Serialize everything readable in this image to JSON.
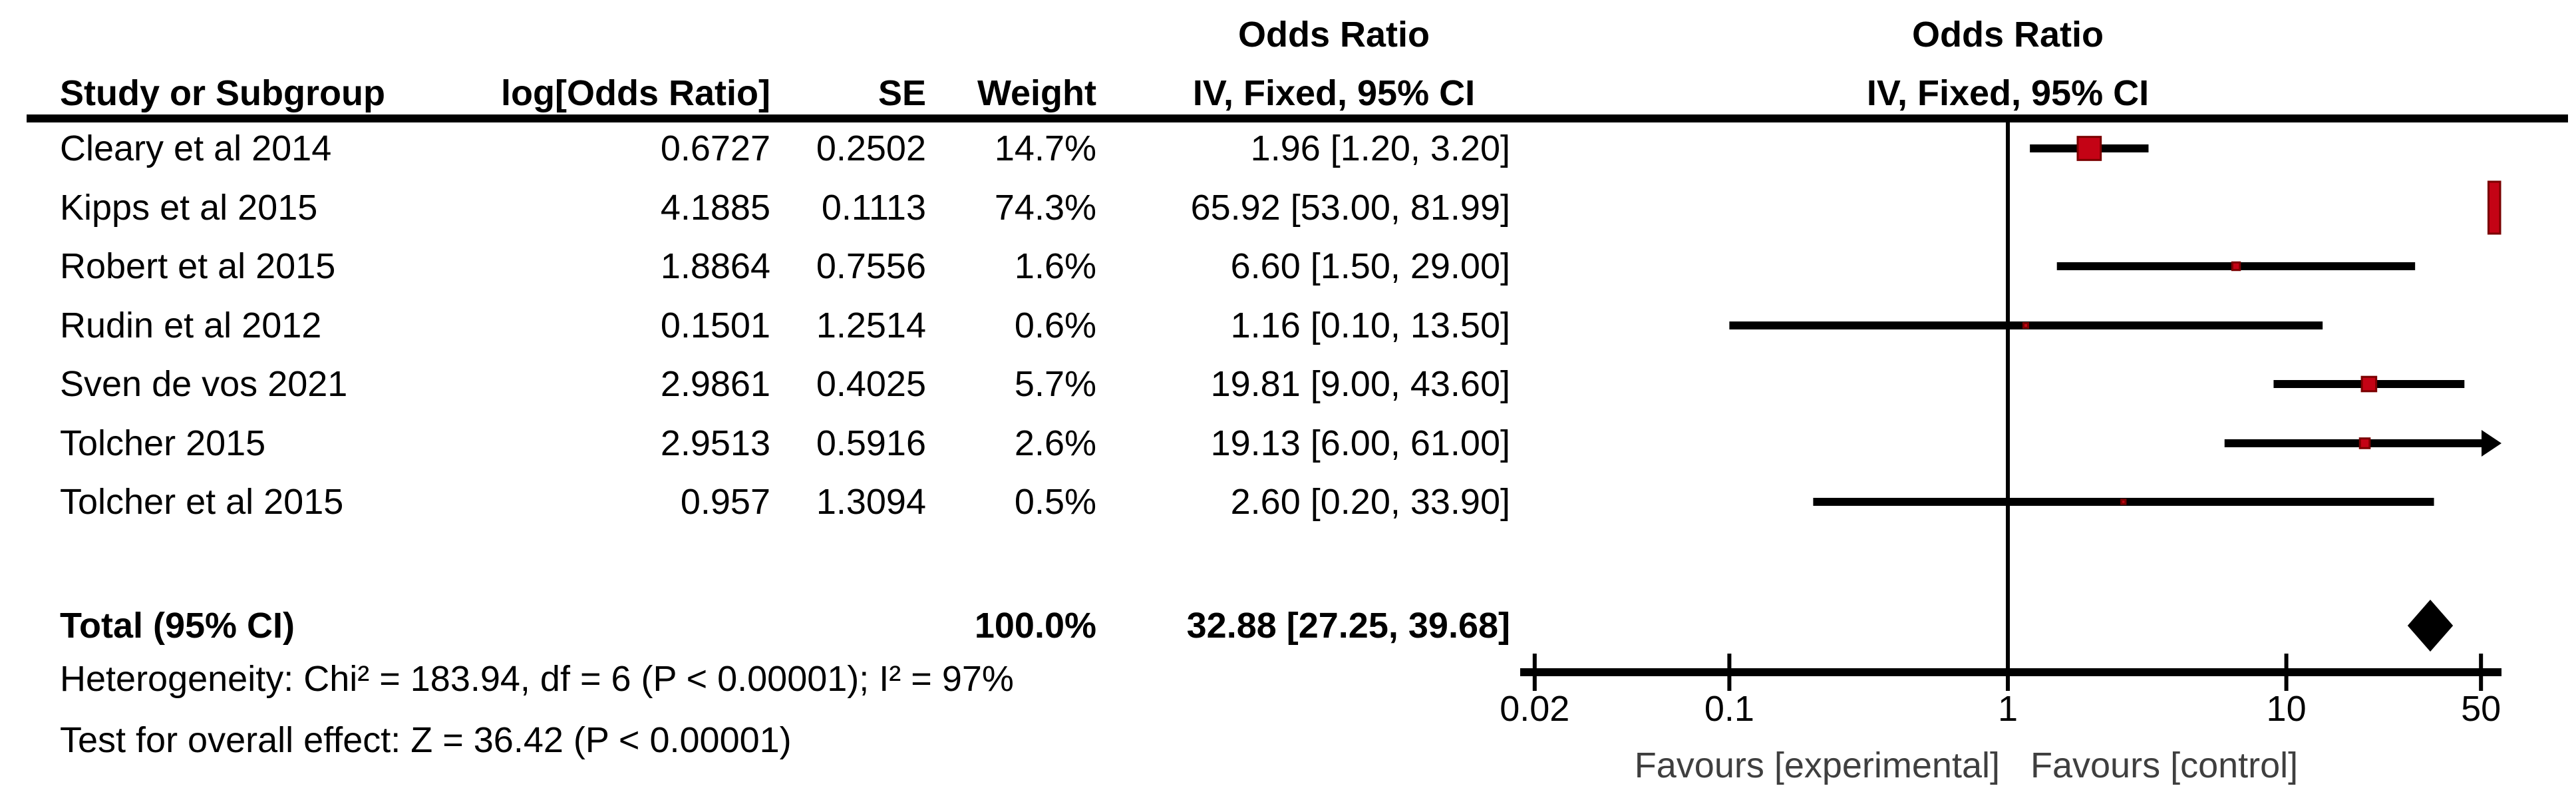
{
  "header": {
    "or_left_line1": "Odds Ratio",
    "study": "Study or Subgroup",
    "log_or": "log[Odds Ratio]",
    "se": "SE",
    "weight": "Weight",
    "ci_method": "IV, Fixed, 95% CI",
    "or_plot_line1": "Odds Ratio",
    "or_plot_line2": "IV, Fixed, 95% CI"
  },
  "footer": {
    "heterogeneity": "Heterogeneity: Chi² = 183.94, df = 6 (P < 0.00001); I² = 97%",
    "overall_effect": "Test for overall effect: Z = 36.42 (P < 0.00001)"
  },
  "chart_data": {
    "type": "forest",
    "effect_measure": "Odds Ratio",
    "model": "IV, Fixed, 95% CI",
    "x_axis": {
      "scale": "log",
      "range": [
        0.02,
        50
      ],
      "ticks": [
        "0.02",
        "0.1",
        "1",
        "10",
        "50"
      ],
      "tick_values": [
        0.02,
        0.1,
        1,
        10,
        50
      ],
      "favours_left": "Favours [experimental]",
      "favours_right": "Favours [control]"
    },
    "studies": [
      {
        "name": "Cleary et al 2014",
        "log_or": "0.6727",
        "se": "0.2502",
        "weight": "14.7%",
        "weight_pct": 14.7,
        "or": 1.96,
        "ci_low": 1.2,
        "ci_high": 3.2,
        "ci_text": "1.96 [1.20, 3.20]",
        "arrow_right": false
      },
      {
        "name": "Kipps et al 2015",
        "log_or": "4.1885",
        "se": "0.1113",
        "weight": "74.3%",
        "weight_pct": 74.3,
        "or": 65.92,
        "ci_low": 53.0,
        "ci_high": 81.99,
        "ci_text": "65.92 [53.00, 81.99]",
        "arrow_right": false
      },
      {
        "name": "Robert et al 2015",
        "log_or": "1.8864",
        "se": "0.7556",
        "weight": "1.6%",
        "weight_pct": 1.6,
        "or": 6.6,
        "ci_low": 1.5,
        "ci_high": 29.0,
        "ci_text": "6.60 [1.50, 29.00]",
        "arrow_right": false
      },
      {
        "name": "Rudin et al 2012",
        "log_or": "0.1501",
        "se": "1.2514",
        "weight": "0.6%",
        "weight_pct": 0.6,
        "or": 1.16,
        "ci_low": 0.1,
        "ci_high": 13.5,
        "ci_text": "1.16 [0.10, 13.50]",
        "arrow_right": false
      },
      {
        "name": "Sven de vos 2021",
        "log_or": "2.9861",
        "se": "0.4025",
        "weight": "5.7%",
        "weight_pct": 5.7,
        "or": 19.81,
        "ci_low": 9.0,
        "ci_high": 43.6,
        "ci_text": "19.81 [9.00, 43.60]",
        "arrow_right": false
      },
      {
        "name": "Tolcher 2015",
        "log_or": "2.9513",
        "se": "0.5916",
        "weight": "2.6%",
        "weight_pct": 2.6,
        "or": 19.13,
        "ci_low": 6.0,
        "ci_high": 61.0,
        "ci_text": "19.13 [6.00, 61.00]",
        "arrow_right": true
      },
      {
        "name": "Tolcher et al 2015",
        "log_or": "0.957",
        "se": "1.3094",
        "weight": "0.5%",
        "weight_pct": 0.5,
        "or": 2.6,
        "ci_low": 0.2,
        "ci_high": 33.9,
        "ci_text": "2.60 [0.20, 33.90]",
        "arrow_right": false
      }
    ],
    "total": {
      "label": "Total (95% CI)",
      "weight": "100.0%",
      "or": 32.88,
      "ci_low": 27.25,
      "ci_high": 39.68,
      "ci_text": "32.88 [27.25, 39.68]"
    },
    "colors": {
      "marker_fill": "#c40315",
      "marker_border": "#7a0000",
      "ci_line": "#000000",
      "diamond": "#000000",
      "axis": "#000000",
      "text": "#000000",
      "favours_text": "#3f3f3f"
    }
  }
}
